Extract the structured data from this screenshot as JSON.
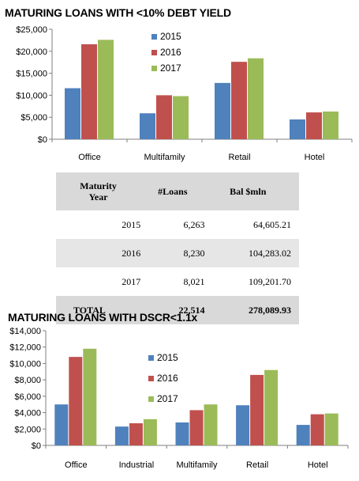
{
  "colors": {
    "s2015": "#4f81bd",
    "s2016": "#c0504d",
    "s2017": "#9bbb59",
    "axis": "#7f7f7f"
  },
  "chart_data": [
    {
      "type": "bar",
      "title": "MATURING LOANS WITH <10% DEBT YIELD",
      "categories": [
        "Office",
        "Multifamily",
        "Retail",
        "Hotel"
      ],
      "series": [
        {
          "name": "2015",
          "values": [
            11600,
            5900,
            12800,
            4500
          ]
        },
        {
          "name": "2016",
          "values": [
            21600,
            10000,
            17600,
            6100
          ]
        },
        {
          "name": "2017",
          "values": [
            22600,
            9800,
            18400,
            6300
          ]
        }
      ],
      "ylim": [
        0,
        25000
      ],
      "yticks": [
        "$0",
        "$5,000",
        "$10,000",
        "$15,000",
        "$20,000",
        "$25,000"
      ],
      "xlabel": "",
      "ylabel": "",
      "legend": "top-center"
    },
    {
      "type": "bar",
      "title": "MATURING LOANS WITH DSCR<1.1x",
      "categories": [
        "Office",
        "Industrial",
        "Multifamily",
        "Retail",
        "Hotel"
      ],
      "series": [
        {
          "name": "2015",
          "values": [
            5000,
            2300,
            2800,
            4900,
            2500
          ]
        },
        {
          "name": "2016",
          "values": [
            10800,
            2700,
            4300,
            8600,
            3800
          ]
        },
        {
          "name": "2017",
          "values": [
            11800,
            3200,
            5000,
            9200,
            3900
          ]
        }
      ],
      "ylim": [
        0,
        14000
      ],
      "yticks": [
        "$0",
        "$2,000",
        "$4,000",
        "$6,000",
        "$8,000",
        "$10,000",
        "$12,000",
        "$14,000"
      ],
      "xlabel": "",
      "ylabel": "",
      "legend": "center"
    }
  ],
  "table": {
    "headers": {
      "year_line1": "Maturity",
      "year_line2": "Year",
      "loans": "#Loans",
      "bal": "Bal $mln"
    },
    "rows": [
      {
        "year": "2015",
        "loans": "6,263",
        "bal": "64,605.21"
      },
      {
        "year": "2016",
        "loans": "8,230",
        "bal": "104,283.02"
      },
      {
        "year": "2017",
        "loans": "8,021",
        "bal": "109,201.70"
      }
    ],
    "total": {
      "label": "TOTAL",
      "loans": "22,514",
      "bal": "278,089.93"
    }
  }
}
